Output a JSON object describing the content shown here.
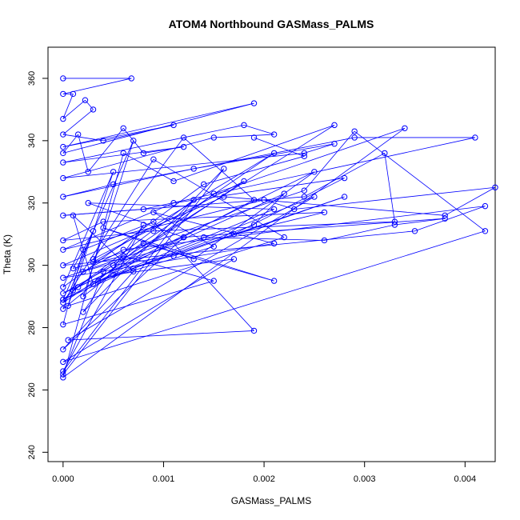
{
  "chart_data": {
    "type": "line",
    "title": "ATOM4 Northbound GASMass_PALMS",
    "xlabel": "GASMass_PALMS",
    "ylabel": "Theta (K)",
    "xlim": [
      -0.00015,
      0.0043
    ],
    "ylim": [
      237,
      370
    ],
    "xticks": [
      "0.000",
      "0.001",
      "0.002",
      "0.003",
      "0.004"
    ],
    "yticks": [
      "240",
      "260",
      "280",
      "300",
      "320",
      "340",
      "360"
    ],
    "xtick_values": [
      0,
      0.001,
      0.002,
      0.003,
      0.004
    ],
    "ytick_values": [
      240,
      260,
      280,
      300,
      320,
      340,
      360
    ],
    "grid": false,
    "line_color": "#0000ff",
    "marker": "open-circle",
    "series": [
      {
        "values_note": "",
        "x": [
          0,
          0.00068,
          0,
          0.0001,
          0,
          0.00022,
          0.0003,
          0,
          0.0004,
          0.0011,
          0,
          0.0019,
          0,
          0.00015,
          0.00025,
          0.0006,
          0.0008,
          0.0012,
          0,
          0.0018,
          0.0021,
          0.0015,
          0,
          0.0024,
          0.0027,
          0.0013,
          0,
          0.0005,
          0.0029,
          0.0041,
          0.0008,
          0,
          0.0024,
          0.0032,
          0.0033,
          0.0009,
          0,
          0.0004,
          0.0026,
          0.0017,
          0.0028,
          0.0011,
          0,
          0.002,
          0.0023,
          0.0043,
          0.0038,
          0.0016,
          0,
          0.0035,
          0.0042,
          0.0006,
          0.0002,
          0.0014,
          0.0026,
          0.0033,
          0.0038,
          0.0012,
          0,
          0.0021,
          0.0009,
          0.0015,
          0.00035,
          0.0019,
          0.0022,
          0,
          0.0005,
          0.0011,
          0.0028,
          0.0007,
          0,
          0.00015,
          0.0025,
          0.0013,
          0.0004,
          0.0021,
          0.0008,
          0,
          0.0003,
          0.0001,
          0.0006,
          0.0015,
          0,
          0.0002,
          0.0009,
          0.0019,
          5e-05,
          0.0025,
          0.0003,
          0.0001,
          0.0007,
          0,
          0.0012,
          0.00025,
          0.0021,
          0.0005,
          0.0017,
          0,
          0.0042,
          0.0029,
          0.0024,
          0.0003,
          0.0021,
          0.0001,
          0.0013,
          0,
          0.0008,
          0.0002,
          0.0016,
          0,
          0.0004,
          0.0027,
          0.0011,
          0.0006,
          0,
          0.0034,
          0.0015,
          0.0002,
          0.0007,
          0,
          0.0019,
          0.0012,
          0.0003,
          0.0018,
          0,
          0.0009,
          0.0022,
          5e-05,
          0.0005,
          0,
          0.0014,
          0.0024,
          0.0019
        ],
        "y": [
          360,
          360,
          355,
          355,
          347,
          353,
          350,
          342,
          340,
          345,
          338,
          352,
          336,
          342,
          330,
          344,
          336,
          338,
          333,
          345,
          342,
          341,
          328,
          336,
          339,
          331,
          322,
          326,
          341,
          341,
          318,
          316,
          322,
          336,
          314,
          311,
          308,
          314,
          317,
          310,
          328,
          320,
          305,
          321,
          318,
          325,
          316,
          322,
          300,
          311,
          319,
          305,
          298,
          309,
          308,
          313,
          315,
          309,
          296,
          307,
          317,
          306,
          295,
          313,
          323,
          291,
          300,
          303,
          322,
          299,
          289,
          293,
          330,
          302,
          312,
          295,
          307,
          286,
          311,
          299,
          303,
          295,
          281,
          305,
          314,
          279,
          276,
          322,
          294,
          316,
          298,
          273,
          309,
          320,
          318,
          297,
          302,
          269,
          311,
          343,
          324,
          301,
          336,
          292,
          321,
          266,
          313,
          285,
          331,
          265,
          298,
          345,
          327,
          336,
          264,
          344,
          323,
          290,
          340,
          289,
          321,
          341,
          302,
          327,
          288,
          334,
          309,
          287,
          330,
          293,
          326,
          335,
          341
        ],
        "name": ""
      }
    ]
  }
}
